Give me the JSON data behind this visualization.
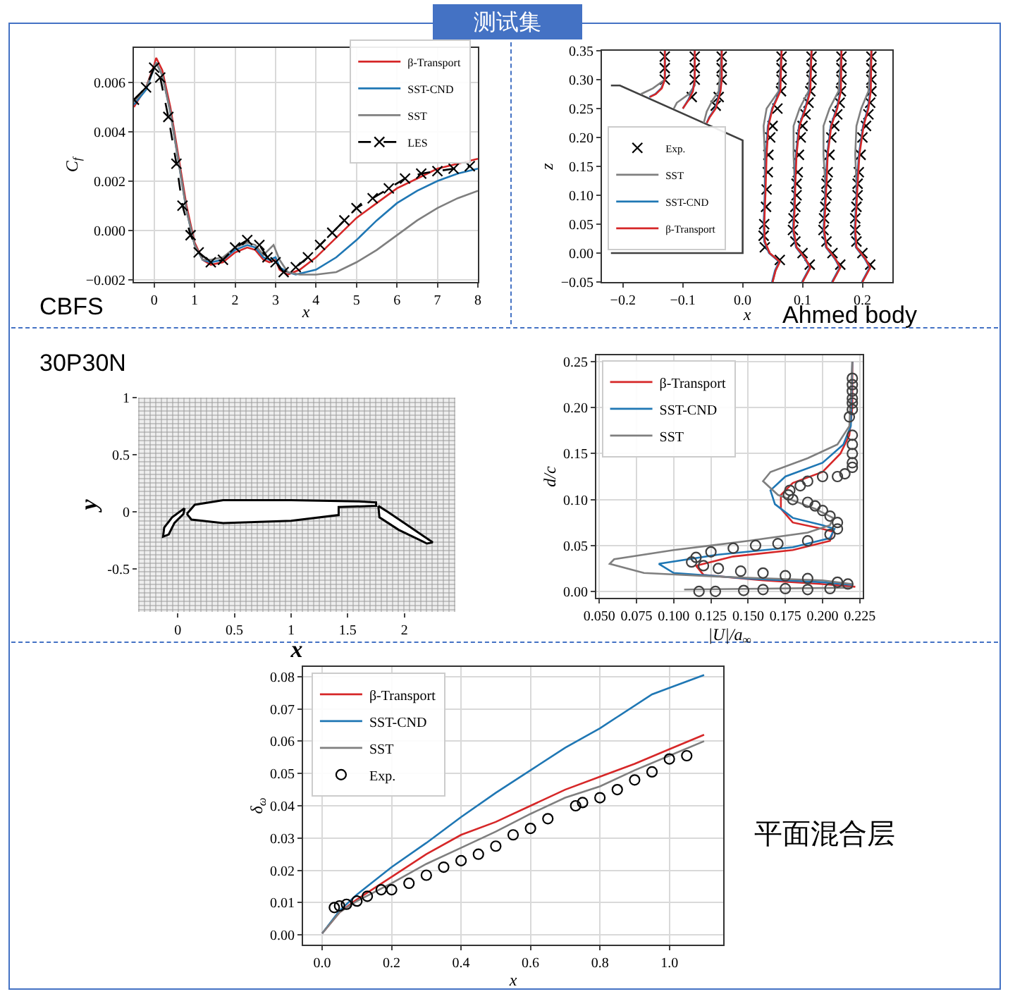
{
  "chart_data": [
    {
      "type": "other",
      "title": "测试集"
    },
    {
      "type": "line",
      "xlabel": "x",
      "ylabel": "C$_{f}$",
      "annotations": [
        "CBFS"
      ],
      "xlim": [
        -0.5,
        8
      ],
      "ylim": [
        -0.0021,
        0.0074
      ],
      "xticks": [
        0,
        1,
        2,
        3,
        4,
        5,
        6,
        7,
        8
      ],
      "yticks": [
        {
          "value": -0.002,
          "label": "−0.002"
        },
        {
          "value": 0,
          "label": "0.000"
        },
        0.002,
        0.004,
        0.006
      ],
      "grid": true,
      "legend": "top right",
      "series": [
        {
          "name": "β-Transport",
          "color": "#d62728",
          "x": [
            -0.5,
            -0.2,
            0,
            0.05,
            0.2,
            0.4,
            0.6,
            0.8,
            1.0,
            1.2,
            1.4,
            1.7,
            2.0,
            2.3,
            2.5,
            2.7,
            2.85,
            3.0,
            3.1,
            3.3,
            3.6,
            4,
            4.5,
            5,
            5.5,
            6,
            6.5,
            7,
            7.5,
            8
          ],
          "values": [
            0.005,
            0.0058,
            0.0067,
            0.007,
            0.0065,
            0.005,
            0.003,
            0.001,
            -0.0005,
            -0.0012,
            -0.0014,
            -0.0013,
            -0.0009,
            -0.0007,
            -0.0008,
            -0.0012,
            -0.0013,
            -0.0012,
            -0.0016,
            -0.0018,
            -0.0016,
            -0.0011,
            -0.0003,
            0.0005,
            0.0011,
            0.0017,
            0.0021,
            0.0025,
            0.0027,
            0.0029
          ]
        },
        {
          "name": "SST-CND",
          "color": "#1f77b4",
          "x": [
            -0.5,
            -0.2,
            0,
            0.05,
            0.2,
            0.4,
            0.6,
            0.8,
            1.0,
            1.2,
            1.4,
            1.7,
            2.0,
            2.3,
            2.5,
            2.7,
            2.85,
            3.0,
            3.1,
            3.3,
            3.5,
            4,
            4.5,
            5,
            5.5,
            6,
            6.5,
            7,
            7.5,
            8
          ],
          "values": [
            0.0051,
            0.0057,
            0.0066,
            0.0068,
            0.0063,
            0.0048,
            0.0028,
            0.0008,
            -0.0006,
            -0.0012,
            -0.0013,
            -0.0012,
            -0.0008,
            -0.0006,
            -0.0007,
            -0.0011,
            -0.0012,
            -0.0011,
            -0.0015,
            -0.0017,
            -0.0018,
            -0.0016,
            -0.0011,
            -0.0004,
            0.0004,
            0.0011,
            0.0016,
            0.002,
            0.0023,
            0.0025
          ]
        },
        {
          "name": "SST",
          "color": "#7f7f7f",
          "x": [
            -0.5,
            -0.2,
            0,
            0.05,
            0.2,
            0.4,
            0.6,
            0.8,
            1.0,
            1.2,
            1.4,
            1.7,
            2.0,
            2.3,
            2.5,
            2.7,
            2.95,
            3.1,
            3.3,
            3.6,
            4,
            4.5,
            5,
            5.5,
            6,
            6.5,
            7,
            7.5,
            8
          ],
          "values": [
            0.0052,
            0.0058,
            0.0066,
            0.0068,
            0.0063,
            0.0048,
            0.0028,
            0.0008,
            -0.0006,
            -0.0012,
            -0.0012,
            -0.0011,
            -0.0007,
            -0.0005,
            -0.0006,
            -0.001,
            -0.0006,
            -0.0012,
            -0.0017,
            -0.0018,
            -0.0018,
            -0.0017,
            -0.0013,
            -0.0008,
            -0.0002,
            0.0004,
            0.0009,
            0.0013,
            0.0016
          ]
        },
        {
          "name": "LES",
          "color": "#000000",
          "line_style": "dashed",
          "marker": "cross",
          "x": [
            -0.5,
            -0.2,
            0,
            0.15,
            0.35,
            0.55,
            0.7,
            0.9,
            1.1,
            1.4,
            1.7,
            2.0,
            2.3,
            2.6,
            2.8,
            3.0,
            3.2,
            3.5,
            3.8,
            4.1,
            4.4,
            4.7,
            5.0,
            5.4,
            5.8,
            6.2,
            6.6,
            7.0,
            7.4,
            7.8
          ],
          "values": [
            0.0053,
            0.0058,
            0.0066,
            0.0062,
            0.0046,
            0.0027,
            0.001,
            -0.0002,
            -0.0009,
            -0.0013,
            -0.0012,
            -0.0007,
            -0.0004,
            -0.0006,
            -0.0011,
            -0.0013,
            -0.0017,
            -0.0015,
            -0.0011,
            -0.0006,
            -0.0001,
            0.0004,
            0.0009,
            0.0013,
            0.0017,
            0.0021,
            0.0023,
            0.0024,
            0.0025,
            0.0026
          ]
        }
      ]
    },
    {
      "type": "line",
      "xlabel": "x",
      "ylabel": "z",
      "annotations": [
        "Ahmed body"
      ],
      "xlim": [
        -0.235,
        0.25
      ],
      "ylim": [
        -0.05,
        0.35
      ],
      "xticks": [
        {
          "value": -0.2,
          "label": "−0.2"
        },
        {
          "value": -0.1,
          "label": "−0.1"
        },
        {
          "value": 0,
          "label": "0.0"
        },
        0.1,
        0.2
      ],
      "yticks": [
        {
          "value": -0.05,
          "label": "−0.05"
        },
        {
          "value": 0,
          "label": "0.00"
        },
        0.05,
        {
          "value": 0.1,
          "label": "0.10"
        },
        0.15,
        {
          "value": 0.2,
          "label": "0.20"
        },
        0.25,
        {
          "value": 0.3,
          "label": "0.30"
        },
        0.35
      ],
      "grid": false,
      "legend": "left",
      "series": [
        {
          "color": "#404040",
          "x": [
            -0.22,
            -0.205,
            0,
            0,
            -0.22
          ],
          "values": [
            0.29,
            0.29,
            0.195,
            0,
            0
          ]
        },
        {
          "name": "Exp.",
          "type": "scatter",
          "marker": "cross",
          "color": "#000000",
          "x": [
            -0.13,
            -0.13,
            -0.13,
            -0.08,
            -0.08,
            -0.08,
            -0.085,
            -0.035,
            -0.035,
            -0.035,
            -0.04,
            -0.045,
            0.065,
            0.065,
            0.065,
            0.064,
            0.058,
            0.05,
            0.046,
            0.043,
            0.042,
            0.04,
            0.039,
            0.036,
            0.035,
            0.037,
            0.062,
            0.115,
            0.115,
            0.115,
            0.113,
            0.11,
            0.105,
            0.1,
            0.097,
            0.094,
            0.092,
            0.09,
            0.09,
            0.088,
            0.085,
            0.084,
            0.088,
            0.1,
            0.112,
            0.165,
            0.165,
            0.165,
            0.164,
            0.162,
            0.158,
            0.153,
            0.148,
            0.145,
            0.142,
            0.14,
            0.14,
            0.138,
            0.136,
            0.135,
            0.14,
            0.15,
            0.163,
            0.215,
            0.215,
            0.215,
            0.215,
            0.213,
            0.21,
            0.206,
            0.2,
            0.197,
            0.194,
            0.192,
            0.192,
            0.19,
            0.188,
            0.188,
            0.19,
            0.2,
            0.213
          ],
          "values": [
            0.34,
            0.32,
            0.3,
            0.34,
            0.32,
            0.3,
            0.27,
            0.34,
            0.32,
            0.3,
            0.27,
            0.255,
            0.34,
            0.32,
            0.3,
            0.28,
            0.25,
            0.22,
            0.2,
            0.17,
            0.14,
            0.11,
            0.08,
            0.05,
            0.03,
            0.01,
            -0.012,
            0.34,
            0.32,
            0.3,
            0.28,
            0.26,
            0.24,
            0.22,
            0.2,
            0.17,
            0.14,
            0.12,
            0.1,
            0.08,
            0.06,
            0.04,
            0.02,
            0.0,
            -0.02,
            0.34,
            0.32,
            0.3,
            0.28,
            0.26,
            0.24,
            0.22,
            0.2,
            0.17,
            0.14,
            0.12,
            0.1,
            0.08,
            0.06,
            0.04,
            0.02,
            0.0,
            -0.02,
            0.34,
            0.32,
            0.3,
            0.28,
            0.26,
            0.24,
            0.22,
            0.2,
            0.17,
            0.14,
            0.12,
            0.1,
            0.08,
            0.06,
            0.04,
            0.02,
            0.0,
            -0.02
          ]
        },
        {
          "name": "SST",
          "color": "#7f7f7f",
          "x": [
            -0.13,
            -0.13,
            -0.15,
            -0.17,
            null,
            -0.08,
            -0.08,
            -0.09,
            -0.11,
            -0.115,
            null,
            -0.035,
            -0.04,
            -0.05,
            -0.06,
            -0.065,
            null,
            0.065,
            0.06,
            0.04,
            0.035,
            0.037,
            0.037,
            0.036,
            0.037,
            0.045,
            0.062,
            0.055,
            0.05,
            null,
            0.115,
            0.11,
            0.095,
            0.085,
            0.085,
            0.087,
            0.086,
            0.085,
            0.09,
            0.105,
            0.113,
            0.1,
            null,
            0.165,
            0.16,
            0.145,
            0.135,
            0.135,
            0.138,
            0.137,
            0.136,
            0.14,
            0.155,
            0.163,
            0.15,
            null,
            0.215,
            0.21,
            0.198,
            0.19,
            0.188,
            0.19,
            0.19,
            0.188,
            0.19,
            0.205,
            0.213,
            0.2
          ],
          "values": [
            0.35,
            0.3,
            0.285,
            0.275,
            null,
            0.35,
            0.29,
            0.275,
            0.26,
            0.25,
            null,
            0.35,
            0.28,
            0.265,
            0.245,
            0.225,
            null,
            0.35,
            0.28,
            0.25,
            0.22,
            0.17,
            0.1,
            0.05,
            0.02,
            0.0,
            -0.015,
            -0.03,
            -0.05,
            null,
            0.35,
            0.28,
            0.25,
            0.22,
            0.17,
            0.12,
            0.08,
            0.04,
            0.01,
            -0.01,
            -0.025,
            -0.05,
            null,
            0.35,
            0.28,
            0.25,
            0.22,
            0.17,
            0.12,
            0.08,
            0.04,
            0.01,
            -0.01,
            -0.025,
            -0.05,
            null,
            0.35,
            0.28,
            0.25,
            0.22,
            0.17,
            0.12,
            0.08,
            0.04,
            0.01,
            -0.01,
            -0.025,
            -0.05
          ]
        },
        {
          "name": "SST-CND",
          "color": "#1f77b4",
          "x": [
            -0.13,
            -0.13,
            -0.136,
            -0.146,
            -0.156,
            null,
            -0.08,
            -0.08,
            -0.084,
            -0.091,
            -0.1,
            null,
            -0.035,
            -0.035,
            -0.038,
            -0.046,
            -0.056,
            -0.06,
            null,
            0.065,
            0.062,
            0.049,
            0.042,
            0.039,
            0.037,
            0.035,
            0.036,
            0.044,
            0.061,
            0.054,
            0.049,
            null,
            0.115,
            0.112,
            0.104,
            0.094,
            0.089,
            0.087,
            0.086,
            0.084,
            0.089,
            0.104,
            0.112,
            0.099,
            null,
            0.165,
            0.163,
            0.157,
            0.147,
            0.141,
            0.139,
            0.137,
            0.135,
            0.139,
            0.154,
            0.162,
            0.149,
            null,
            0.215,
            0.213,
            0.209,
            0.201,
            0.194,
            0.191,
            0.189,
            0.187,
            0.189,
            0.204,
            0.212,
            0.199
          ],
          "values": [
            0.35,
            0.3,
            0.285,
            0.275,
            0.27,
            null,
            0.35,
            0.3,
            0.28,
            0.265,
            0.25,
            null,
            0.35,
            0.3,
            0.28,
            0.25,
            0.235,
            0.225,
            null,
            0.35,
            0.28,
            0.25,
            0.22,
            0.17,
            0.1,
            0.05,
            0.02,
            0.0,
            -0.015,
            -0.03,
            -0.05,
            null,
            0.35,
            0.28,
            0.25,
            0.22,
            0.17,
            0.12,
            0.08,
            0.04,
            0.01,
            -0.01,
            -0.025,
            -0.05,
            null,
            0.35,
            0.28,
            0.25,
            0.22,
            0.17,
            0.12,
            0.08,
            0.04,
            0.01,
            -0.01,
            -0.025,
            -0.05,
            null,
            0.35,
            0.28,
            0.25,
            0.22,
            0.17,
            0.12,
            0.08,
            0.04,
            0.01,
            -0.01,
            -0.025,
            -0.05
          ]
        },
        {
          "name": "β-Transport",
          "color": "#d62728",
          "x": [
            -0.13,
            -0.13,
            -0.135,
            -0.145,
            -0.155,
            null,
            -0.08,
            -0.08,
            -0.083,
            -0.09,
            -0.1,
            null,
            -0.035,
            -0.035,
            -0.037,
            -0.045,
            -0.055,
            -0.06,
            null,
            0.065,
            0.063,
            0.05,
            0.043,
            0.04,
            0.038,
            0.036,
            0.037,
            0.045,
            0.062,
            0.055,
            0.05,
            null,
            0.115,
            0.113,
            0.105,
            0.095,
            0.09,
            0.088,
            0.087,
            0.085,
            0.09,
            0.105,
            0.113,
            0.1,
            null,
            0.165,
            0.164,
            0.158,
            0.148,
            0.142,
            0.14,
            0.138,
            0.136,
            0.14,
            0.155,
            0.163,
            0.15,
            null,
            0.215,
            0.214,
            0.21,
            0.202,
            0.195,
            0.192,
            0.19,
            0.188,
            0.19,
            0.205,
            0.213,
            0.2
          ],
          "values": [
            0.35,
            0.3,
            0.285,
            0.275,
            0.27,
            null,
            0.35,
            0.3,
            0.28,
            0.265,
            0.25,
            null,
            0.35,
            0.3,
            0.28,
            0.25,
            0.235,
            0.225,
            null,
            0.35,
            0.28,
            0.25,
            0.22,
            0.17,
            0.1,
            0.05,
            0.02,
            0.0,
            -0.015,
            -0.03,
            -0.05,
            null,
            0.35,
            0.28,
            0.25,
            0.22,
            0.17,
            0.12,
            0.08,
            0.04,
            0.01,
            -0.01,
            -0.025,
            -0.05,
            null,
            0.35,
            0.28,
            0.25,
            0.22,
            0.17,
            0.12,
            0.08,
            0.04,
            0.01,
            -0.01,
            -0.025,
            -0.05,
            null,
            0.35,
            0.28,
            0.25,
            0.22,
            0.17,
            0.12,
            0.08,
            0.04,
            0.01,
            -0.01,
            -0.025,
            -0.05
          ]
        }
      ]
    },
    {
      "type": "area",
      "xlabel": "x",
      "ylabel": "y",
      "annotations": [
        "30P30N"
      ],
      "xlim": [
        -0.35,
        2.45
      ],
      "ylim": [
        -0.88,
        1
      ],
      "xticks": [
        0,
        0.5,
        1,
        1.5,
        2
      ],
      "yticks": [
        {
          "value": -0.5,
          "label": "-0.5"
        },
        0,
        0.5,
        1
      ],
      "grid": false,
      "series": [
        {
          "color": "#000000",
          "x": [
            0.08,
            0.15,
            0.4,
            1.0,
            1.6,
            1.75,
            1.75,
            1.42,
            1.42,
            1.0,
            0.4,
            0.12,
            0.08
          ],
          "values": [
            -0.02,
            0.06,
            0.1,
            0.1,
            0.09,
            0.08,
            0.05,
            0.04,
            -0.03,
            -0.08,
            -0.1,
            -0.07,
            -0.02
          ]
        },
        {
          "color": "#000000",
          "x": [
            0.06,
            -0.05,
            -0.12,
            -0.13,
            -0.08,
            -0.03,
            0.05,
            0.06
          ],
          "values": [
            0.03,
            -0.05,
            -0.14,
            -0.22,
            -0.2,
            -0.1,
            -0.02,
            0.03
          ]
        },
        {
          "color": "#000000",
          "x": [
            1.77,
            1.85,
            2.0,
            2.25,
            2.2,
            1.95,
            1.78,
            1.77
          ],
          "values": [
            0.05,
            0.0,
            -0.1,
            -0.27,
            -0.28,
            -0.16,
            -0.05,
            0.05
          ]
        }
      ]
    },
    {
      "type": "line",
      "xlabel": "|U|/a$_{∞}$",
      "ylabel": "d/c",
      "xlim": [
        0.048,
        0.227
      ],
      "ylim": [
        -0.007,
        0.257
      ],
      "xticks": [
        {
          "value": 0.05,
          "label": "0.050"
        },
        0.075,
        {
          "value": 0.1,
          "label": "0.100"
        },
        0.125,
        {
          "value": 0.15,
          "label": "0.150"
        },
        0.175,
        {
          "value": 0.2,
          "label": "0.200"
        },
        0.225
      ],
      "yticks": [
        {
          "value": 0,
          "label": "0.00"
        },
        0.05,
        {
          "value": 0.1,
          "label": "0.10"
        },
        0.15,
        {
          "value": 0.2,
          "label": "0.20"
        },
        0.25
      ],
      "grid": true,
      "legend": "top left",
      "series": [
        {
          "name": "β-Transport",
          "color": "#d62728",
          "x": [
            0.22,
            0.22,
            0.218,
            0.212,
            0.2,
            0.18,
            0.172,
            0.172,
            0.18,
            0.2,
            0.207,
            0.205,
            0.18,
            0.14,
            0.115,
            0.12,
            0.16,
            0.2,
            0.222
          ],
          "values": [
            0.25,
            0.2,
            0.17,
            0.15,
            0.13,
            0.118,
            0.105,
            0.09,
            0.075,
            0.068,
            0.065,
            0.055,
            0.045,
            0.038,
            0.028,
            0.018,
            0.012,
            0.008,
            0.005
          ]
        },
        {
          "name": "SST-CND",
          "color": "#1f77b4",
          "x": [
            0.22,
            0.219,
            0.214,
            0.2,
            0.175,
            0.165,
            0.168,
            0.18,
            0.2,
            0.208,
            0.205,
            0.18,
            0.13,
            0.09,
            0.1,
            0.15,
            0.2,
            0.22
          ],
          "values": [
            0.25,
            0.18,
            0.16,
            0.14,
            0.125,
            0.11,
            0.095,
            0.08,
            0.072,
            0.068,
            0.058,
            0.048,
            0.04,
            0.03,
            0.02,
            0.014,
            0.01,
            0.007
          ]
        },
        {
          "name": "SST",
          "color": "#7f7f7f",
          "x": [
            0.22,
            0.218,
            0.21,
            0.19,
            0.165,
            0.16,
            0.17,
            0.195,
            0.207,
            0.205,
            0.19,
            0.15,
            0.1,
            0.06,
            0.057,
            0.08,
            0.13,
            0.2,
            0.22,
            null,
            0.107,
            0.22
          ],
          "values": [
            0.25,
            0.18,
            0.16,
            0.145,
            0.13,
            0.12,
            0.105,
            0.09,
            0.08,
            0.072,
            0.064,
            0.055,
            0.045,
            0.035,
            0.03,
            0.02,
            0.016,
            0.012,
            0.008,
            null,
            0.002,
            0.004
          ]
        },
        {
          "type": "scatter",
          "marker": "circle",
          "color": "#404040",
          "x": [
            0.22,
            0.22,
            0.22,
            0.22,
            0.22,
            0.22,
            0.218,
            0.22,
            0.22,
            0.22,
            0.22,
            0.22,
            0.215,
            0.21,
            0.2,
            0.19,
            0.185,
            0.178,
            0.177,
            0.18,
            0.19,
            0.195,
            0.2,
            0.205,
            0.21,
            0.21,
            0.205,
            0.19,
            0.17,
            0.155,
            0.14,
            0.125,
            0.115,
            0.112,
            0.12,
            0.13,
            0.145,
            0.16,
            0.175,
            0.19,
            0.21,
            0.217,
            0.117,
            0.128,
            0.147,
            0.16,
            0.175,
            0.19,
            0.205
          ],
          "values": [
            0.232,
            0.225,
            0.218,
            0.21,
            0.205,
            0.198,
            0.19,
            0.17,
            0.16,
            0.15,
            0.14,
            0.135,
            0.128,
            0.125,
            0.125,
            0.12,
            0.115,
            0.11,
            0.105,
            0.1,
            0.097,
            0.093,
            0.088,
            0.082,
            0.075,
            0.068,
            0.062,
            0.055,
            0.052,
            0.05,
            0.047,
            0.043,
            0.037,
            0.032,
            0.028,
            0.025,
            0.022,
            0.02,
            0.017,
            0.014,
            0.01,
            0.008,
            0.0,
            0.0,
            0.001,
            0.002,
            0.003,
            0.002,
            0.003
          ]
        }
      ]
    },
    {
      "type": "line",
      "xlabel": "x",
      "ylabel": "δ$_{ω}$",
      "annotations": [
        "平面混合层"
      ],
      "xlim": [
        -0.055,
        1.155
      ],
      "ylim": [
        -0.003,
        0.083
      ],
      "xticks": [
        {
          "value": 0,
          "label": "0.0"
        },
        0.2,
        0.4,
        0.6,
        0.8,
        {
          "value": 1,
          "label": "1.0"
        }
      ],
      "yticks": [
        {
          "value": 0,
          "label": "0.00"
        },
        0.01,
        0.02,
        0.03,
        0.04,
        0.05,
        0.06,
        0.07,
        0.08
      ],
      "grid": true,
      "legend": "top left",
      "series": [
        {
          "name": "β-Transport",
          "color": "#d62728",
          "x": [
            0,
            0.05,
            0.1,
            0.2,
            0.3,
            0.4,
            0.5,
            0.6,
            0.7,
            0.8,
            0.9,
            1.0,
            1.1
          ],
          "values": [
            0.0005,
            0.007,
            0.011,
            0.018,
            0.025,
            0.031,
            0.035,
            0.04,
            0.045,
            0.049,
            0.053,
            0.0575,
            0.062
          ]
        },
        {
          "name": "SST-CND",
          "color": "#1f77b4",
          "x": [
            0,
            0.05,
            0.1,
            0.2,
            0.3,
            0.4,
            0.5,
            0.6,
            0.7,
            0.8,
            0.85,
            0.95,
            1.0,
            1.1
          ],
          "values": [
            0.0005,
            0.0075,
            0.0125,
            0.021,
            0.0285,
            0.0365,
            0.044,
            0.051,
            0.058,
            0.064,
            0.0675,
            0.0745,
            0.0765,
            0.0805
          ]
        },
        {
          "name": "SST",
          "color": "#7f7f7f",
          "x": [
            0,
            0.05,
            0.1,
            0.2,
            0.3,
            0.4,
            0.5,
            0.6,
            0.7,
            0.8,
            0.9,
            1.0,
            1.1
          ],
          "values": [
            0.0005,
            0.007,
            0.0105,
            0.016,
            0.022,
            0.027,
            0.032,
            0.0375,
            0.0425,
            0.046,
            0.051,
            0.0555,
            0.06
          ]
        },
        {
          "name": "Exp.",
          "type": "scatter",
          "marker": "circle",
          "color": "#000000",
          "x": [
            0.035,
            0.05,
            0.07,
            0.1,
            0.13,
            0.17,
            0.2,
            0.25,
            0.3,
            0.35,
            0.4,
            0.45,
            0.5,
            0.55,
            0.6,
            0.65,
            0.73,
            0.75,
            0.8,
            0.85,
            0.9,
            0.95,
            1.0,
            1.05
          ],
          "values": [
            0.0085,
            0.009,
            0.0095,
            0.0105,
            0.012,
            0.014,
            0.014,
            0.016,
            0.0185,
            0.021,
            0.023,
            0.025,
            0.0275,
            0.031,
            0.033,
            0.036,
            0.04,
            0.041,
            0.0425,
            0.045,
            0.048,
            0.0505,
            0.0545,
            0.0555
          ]
        }
      ]
    }
  ]
}
